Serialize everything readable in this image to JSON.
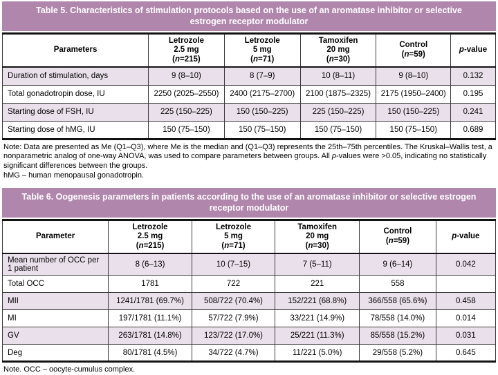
{
  "theme": {
    "accent": "#b186ac",
    "row_shade": "#eae0eb",
    "border_heavy": "#121212",
    "border_line": "#3a3a3a",
    "title_text_color": "#ffffff"
  },
  "table5": {
    "title": "Table 5. Characteristics of stimulation protocols based on the use of an aromatase inhibitor or selective estrogen receptor modulator",
    "columns": [
      {
        "lines": [
          [
            {
              "t": "Parameters"
            }
          ]
        ]
      },
      {
        "lines": [
          [
            {
              "t": "Letrozole"
            }
          ],
          [
            {
              "t": "2.5 mg"
            }
          ],
          [
            {
              "t": "("
            },
            {
              "t": "n",
              "i": true
            },
            {
              "t": "=215)"
            }
          ]
        ]
      },
      {
        "lines": [
          [
            {
              "t": "Letrozole"
            }
          ],
          [
            {
              "t": "5 mg"
            }
          ],
          [
            {
              "t": "("
            },
            {
              "t": "n",
              "i": true
            },
            {
              "t": "=71)"
            }
          ]
        ]
      },
      {
        "lines": [
          [
            {
              "t": "Tamoxifen"
            }
          ],
          [
            {
              "t": "20 mg"
            }
          ],
          [
            {
              "t": "("
            },
            {
              "t": "n",
              "i": true
            },
            {
              "t": "=30)"
            }
          ]
        ]
      },
      {
        "lines": [
          [
            {
              "t": "Control"
            }
          ],
          [
            {
              "t": "("
            },
            {
              "t": "n",
              "i": true
            },
            {
              "t": "=59)"
            }
          ]
        ]
      },
      {
        "lines": [
          [
            {
              "t": "p",
              "i": true
            },
            {
              "t": "-value"
            }
          ]
        ]
      }
    ],
    "rows": [
      {
        "cells": [
          "Duration of stimulation, days",
          "9 (8–10)",
          "8 (7–9)",
          "10 (8–11)",
          "9 (8–10)",
          "0.132"
        ]
      },
      {
        "cells": [
          "Total gonadotropin dose, IU",
          "2250 (2025–2550)",
          "2400 (2175–2700)",
          "2100 (1875–2325)",
          "2175 (1950–2400)",
          "0.195"
        ]
      },
      {
        "cells": [
          "Starting dose of FSH, IU",
          "225 (150–225)",
          "150 (150–225)",
          "225 (150–225)",
          "150 (150–225)",
          "0.241"
        ]
      },
      {
        "cells": [
          "Starting dose of hMG, IU",
          "150 (75–150)",
          "150 (75–150)",
          "150 (75–150)",
          "150 (75–150)",
          "0.689"
        ]
      }
    ],
    "notes": [
      {
        "segments": [
          {
            "t": "Note: Data are presented as Me (Q1–Q3), where Me is the median and (Q1–Q3) represents the 25th–75th percentiles. The Kruskal–Wallis test, a nonparametric analog of one-way ANOVA, was used to compare parameters between groups. All "
          },
          {
            "t": "p",
            "i": true
          },
          {
            "t": "-values were >0.05, indicating no statistically significant differences between the groups."
          }
        ]
      },
      {
        "segments": [
          {
            "t": "hMG – human menopausal gonadotropin."
          }
        ]
      }
    ]
  },
  "table6": {
    "title": "Table 6. Oogenesis parameters in patients according to the use of an aromatase inhibitor or selective estrogen receptor modulator",
    "columns": [
      {
        "lines": [
          [
            {
              "t": "Parameter"
            }
          ]
        ]
      },
      {
        "lines": [
          [
            {
              "t": "Letrozole"
            }
          ],
          [
            {
              "t": "2.5 mg"
            }
          ],
          [
            {
              "t": "("
            },
            {
              "t": "n",
              "i": true
            },
            {
              "t": "=215)"
            }
          ]
        ]
      },
      {
        "lines": [
          [
            {
              "t": "Letrozole"
            }
          ],
          [
            {
              "t": "5 mg"
            }
          ],
          [
            {
              "t": "("
            },
            {
              "t": "n",
              "i": true
            },
            {
              "t": "=71)"
            }
          ]
        ]
      },
      {
        "lines": [
          [
            {
              "t": "Tamoxifen"
            }
          ],
          [
            {
              "t": "20 mg"
            }
          ],
          [
            {
              "t": "("
            },
            {
              "t": "n",
              "i": true
            },
            {
              "t": "=30)"
            }
          ]
        ]
      },
      {
        "lines": [
          [
            {
              "t": "Control"
            }
          ],
          [
            {
              "t": "("
            },
            {
              "t": "n",
              "i": true
            },
            {
              "t": "=59)"
            }
          ]
        ]
      },
      {
        "lines": [
          [
            {
              "t": "p",
              "i": true
            },
            {
              "t": "-value"
            }
          ]
        ]
      }
    ],
    "rows": [
      {
        "cells": [
          "Mean number of OCC per 1 patient",
          "8 (6–13)",
          "10 (7–15)",
          "7 (5–11)",
          "9 (6–14)",
          "0.042"
        ]
      },
      {
        "cells": [
          "Total OCC",
          "1781",
          "722",
          "221",
          "558",
          ""
        ]
      },
      {
        "cells": [
          "MII",
          "1241/1781 (69.7%)",
          "508/722 (70.4%)",
          "152/221 (68.8%)",
          "366/558 (65.6%)",
          "0.458"
        ]
      },
      {
        "cells": [
          "MI",
          "197/1781 (11.1%)",
          "57/722 (7.9%)",
          "33/221 (14.9%)",
          "78/558 (14.0%)",
          "0.014"
        ]
      },
      {
        "cells": [
          "GV",
          "263/1781 (14.8%)",
          "123/722 (17.0%)",
          "25/221 (11.3%)",
          "85/558 (15.2%)",
          "0.031"
        ]
      },
      {
        "cells": [
          "Deg",
          "80/1781 (4.5%)",
          "34/722 (4.7%)",
          "11/221 (5.0%)",
          "29/558 (5.2%)",
          "0.645"
        ]
      }
    ],
    "notes": [
      {
        "segments": [
          {
            "t": "Note. OCC – oocyte-cumulus complex."
          }
        ]
      }
    ]
  }
}
